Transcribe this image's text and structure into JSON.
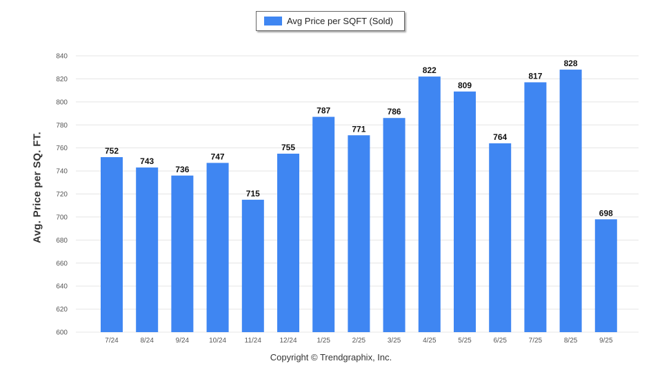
{
  "legend": {
    "label": "Avg Price per SQFT (Sold)"
  },
  "footer": {
    "copyright": "Copyright © Trendgraphix, Inc."
  },
  "colors": {
    "bar": "#3f86f2",
    "grid": "#e4e4e4"
  },
  "chart_data": {
    "type": "bar",
    "categories": [
      "7/24",
      "8/24",
      "9/24",
      "10/24",
      "11/24",
      "12/24",
      "1/25",
      "2/25",
      "3/25",
      "4/25",
      "5/25",
      "6/25",
      "7/25",
      "8/25",
      "9/25"
    ],
    "series": [
      {
        "name": "Avg Price per SQFT (Sold)",
        "values": [
          752,
          743,
          736,
          747,
          715,
          755,
          787,
          771,
          786,
          822,
          809,
          764,
          817,
          828,
          698
        ]
      }
    ],
    "ylabel": "Avg. Price per SQ. FT.",
    "xlabel": "",
    "ylim": [
      600,
      840
    ],
    "yticks": [
      600,
      620,
      640,
      660,
      680,
      700,
      720,
      740,
      760,
      780,
      800,
      820,
      840
    ],
    "grid": true,
    "legend_position": "top-center",
    "data_labels": true
  }
}
